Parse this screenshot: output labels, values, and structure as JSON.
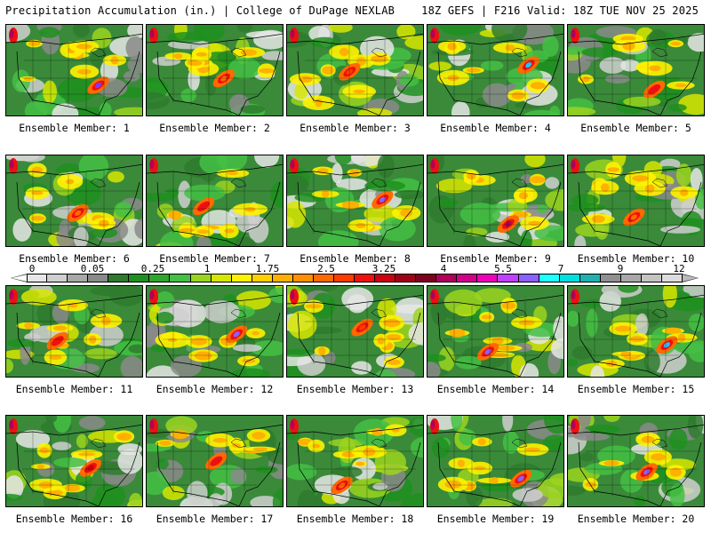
{
  "header": {
    "title_left": "Precipitation Accumulation (in.) | College of DuPage NEXLAB",
    "title_right": "18Z GEFS | F216 Valid: 18Z TUE NOV 25 2025"
  },
  "colorbar": {
    "tick_labels": [
      "0",
      "0.05",
      "0.25",
      "1",
      "1.75",
      "2.5",
      "3.25",
      "4",
      "5.5",
      "7",
      "9",
      "12"
    ],
    "colors": [
      "#e6e6e6",
      "#cfcfcf",
      "#a8a8a8",
      "#8a8a8a",
      "#2f7a2f",
      "#1f8f1f",
      "#2fa52f",
      "#44c044",
      "#9bd41f",
      "#d7e600",
      "#fff200",
      "#ffd000",
      "#ffb000",
      "#ff9000",
      "#ff6a00",
      "#ff3c00",
      "#ee1010",
      "#cc0010",
      "#a00018",
      "#800020",
      "#b0005a",
      "#d0008a",
      "#ee00b8",
      "#c040ff",
      "#8a60ff",
      "#20ffff",
      "#00dede",
      "#20b0b0",
      "#909090",
      "#a8a8a8",
      "#c4c4c4",
      "#dcdcdc"
    ]
  },
  "members": [
    {
      "label": "Ensemble Member: 1",
      "hotspot": "#7a3cff"
    },
    {
      "label": "Ensemble Member: 2",
      "hotspot": "#ff6a00"
    },
    {
      "label": "Ensemble Member: 3",
      "hotspot": "#ff3c00"
    },
    {
      "label": "Ensemble Member: 4",
      "hotspot": "#20c0ff"
    },
    {
      "label": "Ensemble Member: 5",
      "hotspot": "#ee1010"
    },
    {
      "label": "Ensemble Member: 6",
      "hotspot": "#ff6a00"
    },
    {
      "label": "Ensemble Member: 7",
      "hotspot": "#ee1010"
    },
    {
      "label": "Ensemble Member: 8",
      "hotspot": "#8a60ff"
    },
    {
      "label": "Ensemble Member: 9",
      "hotspot": "#b0005a"
    },
    {
      "label": "Ensemble Member: 10",
      "hotspot": "#ff6a00"
    },
    {
      "label": "Ensemble Member: 11",
      "hotspot": "#ee1010"
    },
    {
      "label": "Ensemble Member: 12",
      "hotspot": "#8a60ff"
    },
    {
      "label": "Ensemble Member: 13",
      "hotspot": "#ff3c00"
    },
    {
      "label": "Ensemble Member: 14",
      "hotspot": "#8a60ff"
    },
    {
      "label": "Ensemble Member: 15",
      "hotspot": "#20c0ff"
    },
    {
      "label": "Ensemble Member: 16",
      "hotspot": "#cc0010"
    },
    {
      "label": "Ensemble Member: 17",
      "hotspot": "#ee1010"
    },
    {
      "label": "Ensemble Member: 18",
      "hotspot": "#ff6a00"
    },
    {
      "label": "Ensemble Member: 19",
      "hotspot": "#8a60ff"
    },
    {
      "label": "Ensemble Member: 20",
      "hotspot": "#8a60ff"
    }
  ]
}
